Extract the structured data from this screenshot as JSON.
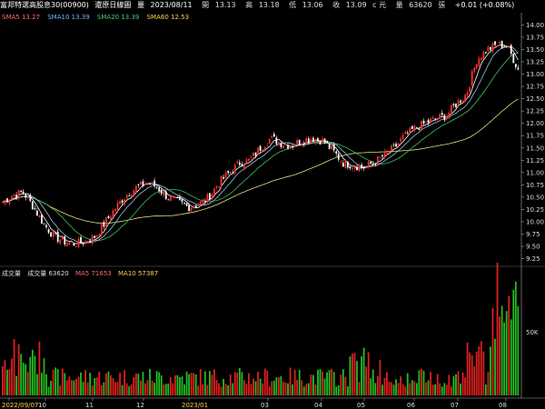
{
  "header": {
    "security": "富邦特選高股息30(00900)",
    "period": "還原日線圖",
    "date_label": "量",
    "date": "2023/08/11",
    "open_label": "開",
    "open": "13.13",
    "high_label": "高",
    "high": "13.18",
    "low_label": "低",
    "low": "13.06",
    "close_label": "收",
    "close": "13.09",
    "unit": "c 元",
    "volume_label": "量",
    "volume": "63620",
    "volume_unit": "張",
    "change": "+0.01 (+0.08%)"
  },
  "ma_legend": {
    "sma5": "SMA5 13.27",
    "sma10": "SMA10 13.39",
    "sma20": "SMA20 13.39",
    "sma60": "SMA60 12.53"
  },
  "vol_legend": {
    "title": "成交量",
    "vol": "成交量 63620",
    "ma5": "MA5 71653",
    "ma10": "MA10 57387"
  },
  "colors": {
    "up": "#ff3030",
    "down": "#ffffff",
    "vol_up": "#e02020",
    "vol_down": "#20c020",
    "sma5": "#ffffff",
    "sma10": "#a0c0e0",
    "sma20": "#40c060",
    "sma60": "#e6e27a",
    "axis": "#aaaaaa"
  },
  "chart_data": {
    "type": "candlestick",
    "y_ticks": [
      "14.00",
      "13.75",
      "13.50",
      "13.25",
      "13.00",
      "12.75",
      "12.50",
      "12.25",
      "12.00",
      "11.75",
      "11.50",
      "11.25",
      "11.00",
      "10.75",
      "10.50",
      "10.25",
      "10.00",
      "9.75",
      "9.50",
      "9.25"
    ],
    "ylim": [
      9.15,
      14.1
    ],
    "vol_tick": "50K",
    "x_ticks": [
      "2022/09/07",
      "10",
      "11",
      "12",
      "2023/01",
      "03",
      "04",
      "05",
      "06",
      "07",
      "08"
    ],
    "close_points": [
      10.4,
      10.55,
      10.6,
      10.3,
      9.95,
      9.7,
      9.6,
      9.55,
      9.6,
      9.7,
      10.0,
      10.3,
      10.55,
      10.7,
      10.8,
      10.7,
      10.5,
      10.4,
      10.3,
      10.35,
      10.5,
      10.8,
      11.0,
      11.2,
      11.25,
      11.5,
      11.7,
      11.6,
      11.55,
      11.65,
      11.7,
      11.65,
      11.45,
      11.2,
      11.15,
      11.1,
      11.2,
      11.35,
      11.5,
      11.75,
      11.9,
      12.0,
      12.1,
      12.15,
      12.4,
      12.6,
      13.3,
      13.5,
      13.6,
      13.55,
      13.1
    ]
  }
}
